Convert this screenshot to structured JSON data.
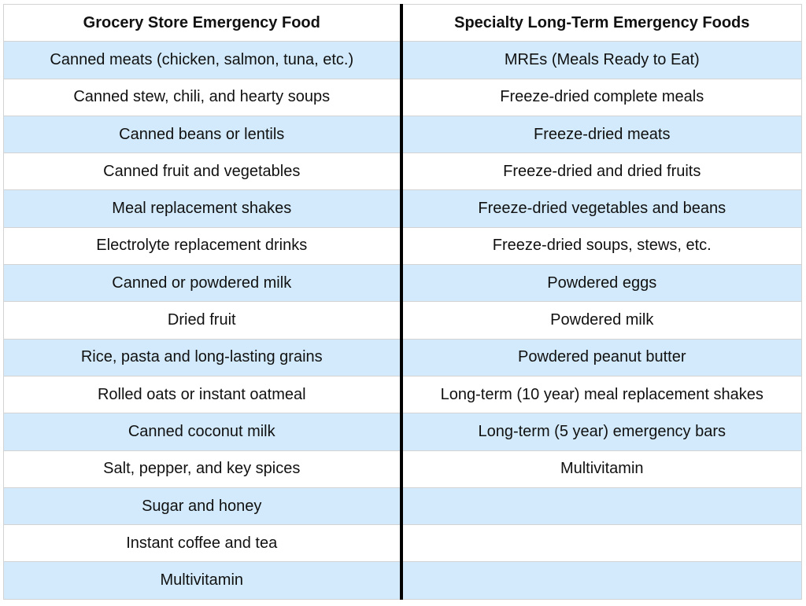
{
  "table": {
    "headers": [
      "Grocery Store Emergency Food",
      "Specialty Long-Term Emergency Foods"
    ],
    "rows": [
      [
        "Canned meats (chicken, salmon, tuna, etc.)",
        "MREs (Meals Ready to Eat)"
      ],
      [
        "Canned stew, chili, and hearty soups",
        "Freeze-dried complete meals"
      ],
      [
        "Canned beans or lentils",
        "Freeze-dried meats"
      ],
      [
        "Canned fruit and vegetables",
        "Freeze-dried and dried fruits"
      ],
      [
        "Meal replacement shakes",
        "Freeze-dried vegetables and beans"
      ],
      [
        "Electrolyte replacement drinks",
        "Freeze-dried soups, stews, etc."
      ],
      [
        "Canned or powdered milk",
        "Powdered eggs"
      ],
      [
        "Dried fruit",
        "Powdered milk"
      ],
      [
        "Rice, pasta and long-lasting grains",
        "Powdered peanut butter"
      ],
      [
        "Rolled oats or instant oatmeal",
        "Long-term (10 year) meal replacement shakes"
      ],
      [
        "Canned coconut milk",
        "Long-term (5 year) emergency bars"
      ],
      [
        "Salt, pepper, and key spices",
        "Multivitamin"
      ],
      [
        "Sugar and honey",
        ""
      ],
      [
        "Instant coffee and tea",
        ""
      ],
      [
        "Multivitamin",
        ""
      ]
    ]
  },
  "colors": {
    "stripe": "#d2eafb",
    "divider": "#000000",
    "grid": "#d3d3d3"
  }
}
